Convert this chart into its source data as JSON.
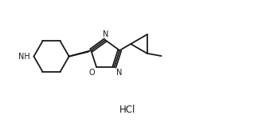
{
  "bg_color": "#ffffff",
  "line_color": "#1a1a1a",
  "line_width": 1.3,
  "font_size_label": 7.0,
  "font_size_hcl": 8.5,
  "hcl_text": "HCl",
  "figsize": [
    3.34,
    1.64
  ],
  "dpi": 100,
  "xlim": [
    0.0,
    10.0
  ],
  "ylim": [
    0.0,
    5.0
  ]
}
